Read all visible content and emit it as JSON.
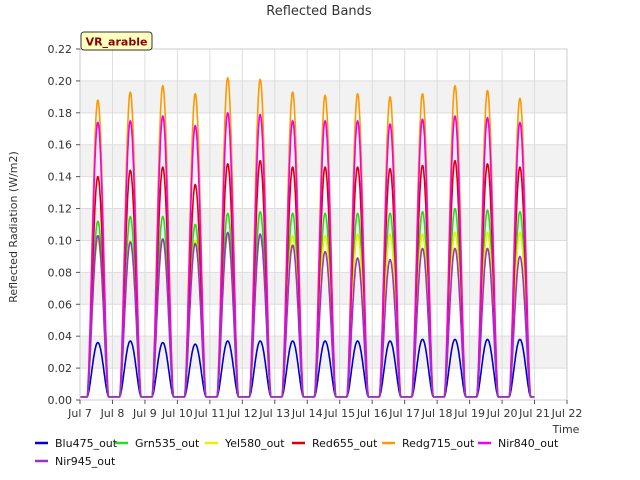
{
  "chart_data": {
    "type": "line",
    "title": "Reflected Bands",
    "xlabel": "Time",
    "ylabel": "Reflected Radiation (W/m2)",
    "badge": "VR_arable",
    "xlim": [
      7,
      22
    ],
    "ylim": [
      0,
      0.22
    ],
    "x_ticks": [
      "Jul 7",
      "Jul 8",
      "Jul 9",
      "Jul 10",
      "Jul 11",
      "Jul 12",
      "Jul 13",
      "Jul 14",
      "Jul 15",
      "Jul 16",
      "Jul 17",
      "Jul 18",
      "Jul 19",
      "Jul 20",
      "Jul 21",
      "Jul 22"
    ],
    "y_ticks": [
      "0.00",
      "0.02",
      "0.04",
      "0.06",
      "0.08",
      "0.10",
      "0.12",
      "0.14",
      "0.16",
      "0.18",
      "0.20",
      "0.22"
    ],
    "grid": true,
    "legend_position": "bottom",
    "x_unit": "day of July; daily peak at local noon",
    "days": [
      7.55,
      8.55,
      9.55,
      10.55,
      11.55,
      12.55,
      13.55,
      14.55,
      15.55,
      16.55,
      17.55,
      18.55,
      19.55,
      20.55
    ],
    "series": [
      {
        "name": "Blu475_out",
        "color": "#0000cc",
        "peaks": [
          0.036,
          0.037,
          0.036,
          0.035,
          0.037,
          0.037,
          0.037,
          0.037,
          0.037,
          0.037,
          0.038,
          0.038,
          0.038,
          0.038
        ]
      },
      {
        "name": "Grn535_out",
        "color": "#22dd22",
        "peaks": [
          0.112,
          0.115,
          0.115,
          0.11,
          0.117,
          0.118,
          0.117,
          0.117,
          0.117,
          0.117,
          0.118,
          0.12,
          0.119,
          0.118
        ]
      },
      {
        "name": "Yel580_out",
        "color": "#eeee00",
        "peaks": [
          0.1,
          0.1,
          0.1,
          0.1,
          0.103,
          0.103,
          0.103,
          0.103,
          0.104,
          0.104,
          0.104,
          0.105,
          0.105,
          0.105
        ]
      },
      {
        "name": "Red655_out",
        "color": "#dd0000",
        "peaks": [
          0.14,
          0.144,
          0.146,
          0.135,
          0.148,
          0.15,
          0.146,
          0.146,
          0.146,
          0.145,
          0.147,
          0.15,
          0.148,
          0.146
        ]
      },
      {
        "name": "Redg715_out",
        "color": "#ff9900",
        "peaks": [
          0.188,
          0.193,
          0.197,
          0.192,
          0.202,
          0.201,
          0.193,
          0.191,
          0.192,
          0.19,
          0.192,
          0.197,
          0.194,
          0.189
        ]
      },
      {
        "name": "Nir840_out",
        "color": "#ee00ee",
        "peaks": [
          0.174,
          0.175,
          0.178,
          0.172,
          0.18,
          0.179,
          0.175,
          0.175,
          0.175,
          0.173,
          0.176,
          0.178,
          0.177,
          0.174
        ]
      },
      {
        "name": "Nir945_out",
        "color": "#9933cc",
        "peaks": [
          0.103,
          0.099,
          0.101,
          0.098,
          0.105,
          0.104,
          0.097,
          0.093,
          0.089,
          0.088,
          0.095,
          0.095,
          0.095,
          0.09
        ]
      }
    ]
  }
}
